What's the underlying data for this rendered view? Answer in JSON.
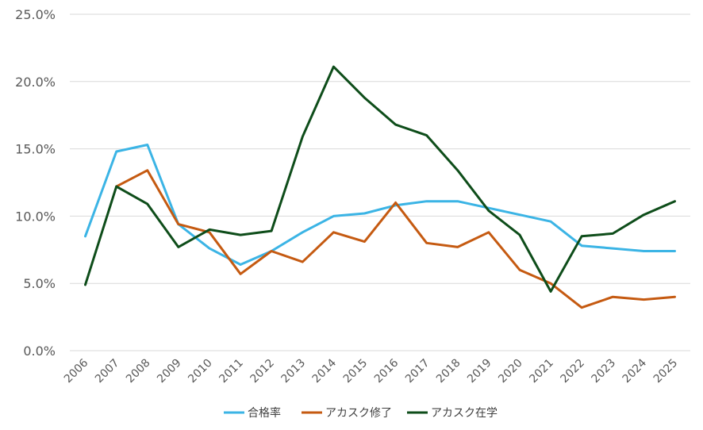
{
  "chart_data": {
    "type": "line",
    "x": [
      "2006",
      "2007",
      "2008",
      "2009",
      "2010",
      "2011",
      "2012",
      "2013",
      "2014",
      "2015",
      "2016",
      "2017",
      "2018",
      "2019",
      "2020",
      "2021",
      "2022",
      "2023",
      "2024",
      "2025"
    ],
    "series": [
      {
        "name": "合格率",
        "color": "#3bb4e5",
        "values": [
          8.5,
          14.8,
          15.3,
          9.4,
          7.6,
          6.4,
          7.4,
          8.8,
          10.0,
          10.2,
          10.8,
          11.1,
          11.1,
          10.6,
          10.1,
          9.6,
          7.8,
          7.6,
          7.4,
          7.4
        ]
      },
      {
        "name": "アカスク修了",
        "color": "#c55a11",
        "values": [
          null,
          12.2,
          13.4,
          9.4,
          8.8,
          5.7,
          7.4,
          6.6,
          8.8,
          8.1,
          11.0,
          8.0,
          7.7,
          8.8,
          6.0,
          5.0,
          3.2,
          4.0,
          3.8,
          4.0
        ]
      },
      {
        "name": "アカスク在学",
        "color": "#0e4d1a",
        "values": [
          4.9,
          12.2,
          10.9,
          7.7,
          9.0,
          8.6,
          8.9,
          15.9,
          21.1,
          18.8,
          16.8,
          16.0,
          13.4,
          10.4,
          8.6,
          4.4,
          8.5,
          8.7,
          10.1,
          11.1
        ]
      }
    ],
    "y_ticks": [
      "0.0%",
      "5.0%",
      "10.0%",
      "15.0%",
      "20.0%",
      "25.0%"
    ],
    "ylim": [
      0,
      25
    ],
    "grid": true,
    "legend_position": "bottom"
  }
}
